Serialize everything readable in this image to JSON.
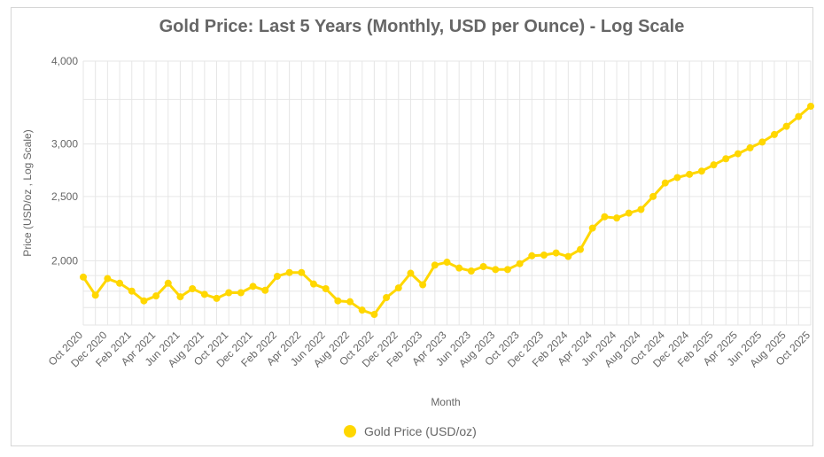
{
  "colors": {
    "series": "#FFD700",
    "grid": "#e6e6e6",
    "text": "#666666",
    "frame": "#d6d6d6"
  },
  "chart_data": {
    "type": "line",
    "title": "Gold Price: Last 5 Years (Monthly, USD per Ounce) - Log Scale",
    "xlabel": "Month",
    "ylabel": "Price (USD/oz , Log Scale)",
    "y_scale": "log",
    "ylim": [
      1600,
      4000
    ],
    "y_ticks": [
      {
        "value": 4000,
        "label": "4,000"
      },
      {
        "value": 3000,
        "label": "3,000"
      },
      {
        "value": 2500,
        "label": "2,500"
      },
      {
        "value": 2000,
        "label": "2,000"
      }
    ],
    "y_minor_gridlines": [
      3500,
      2250,
      1900,
      1800,
      1700,
      1600
    ],
    "x_tick_labels": [
      "Oct 2020",
      "Dec 2020",
      "Feb 2021",
      "Apr 2021",
      "Jun 2021",
      "Aug 2021",
      "Oct 2021",
      "Dec 2021",
      "Feb 2022",
      "Apr 2022",
      "Jun 2022",
      "Aug 2022",
      "Oct 2022",
      "Dec 2022",
      "Feb 2023",
      "Apr 2023",
      "Jun 2023",
      "Aug 2023",
      "Oct 2023",
      "Dec 2023",
      "Feb 2024",
      "Apr 2024",
      "Jun 2024",
      "Aug 2024",
      "Oct 2024",
      "Dec 2024",
      "Feb 2025",
      "Apr 2025",
      "Jun 2025",
      "Aug 2025",
      "Oct 2025"
    ],
    "grid": true,
    "legend": "bottom",
    "series": [
      {
        "name": "Gold Price (USD/oz)",
        "color": "#FFD700",
        "x": [
          "Oct 2020",
          "Nov 2020",
          "Dec 2020",
          "Jan 2021",
          "Feb 2021",
          "Mar 2021",
          "Apr 2021",
          "May 2021",
          "Jun 2021",
          "Jul 2021",
          "Aug 2021",
          "Sep 2021",
          "Oct 2021",
          "Nov 2021",
          "Dec 2021",
          "Jan 2022",
          "Feb 2022",
          "Mar 2022",
          "Apr 2022",
          "May 2022",
          "Jun 2022",
          "Jul 2022",
          "Aug 2022",
          "Sep 2022",
          "Oct 2022",
          "Nov 2022",
          "Dec 2022",
          "Jan 2023",
          "Feb 2023",
          "Mar 2023",
          "Apr 2023",
          "May 2023",
          "Jun 2023",
          "Jul 2023",
          "Aug 2023",
          "Sep 2023",
          "Oct 2023",
          "Nov 2023",
          "Dec 2023",
          "Jan 2024",
          "Feb 2024",
          "Mar 2024",
          "Apr 2024",
          "May 2024",
          "Jun 2024",
          "Jul 2024",
          "Aug 2024",
          "Sep 2024",
          "Oct 2024",
          "Nov 2024",
          "Dec 2024",
          "Jan 2025",
          "Feb 2025",
          "Mar 2025",
          "Apr 2025",
          "May 2025",
          "Jun 2025",
          "Jul 2025",
          "Aug 2025",
          "Sep 2025",
          "Oct 2025"
        ],
        "values": [
          1890,
          1775,
          1880,
          1850,
          1800,
          1740,
          1770,
          1850,
          1765,
          1815,
          1780,
          1755,
          1790,
          1790,
          1830,
          1805,
          1895,
          1920,
          1920,
          1845,
          1815,
          1740,
          1735,
          1685,
          1660,
          1760,
          1820,
          1915,
          1840,
          1970,
          1990,
          1950,
          1930,
          1960,
          1940,
          1940,
          1980,
          2035,
          2040,
          2055,
          2030,
          2080,
          2240,
          2330,
          2320,
          2360,
          2390,
          2500,
          2620,
          2670,
          2700,
          2730,
          2790,
          2850,
          2900,
          2960,
          3020,
          3100,
          3190,
          3300,
          3420
        ]
      }
    ]
  }
}
